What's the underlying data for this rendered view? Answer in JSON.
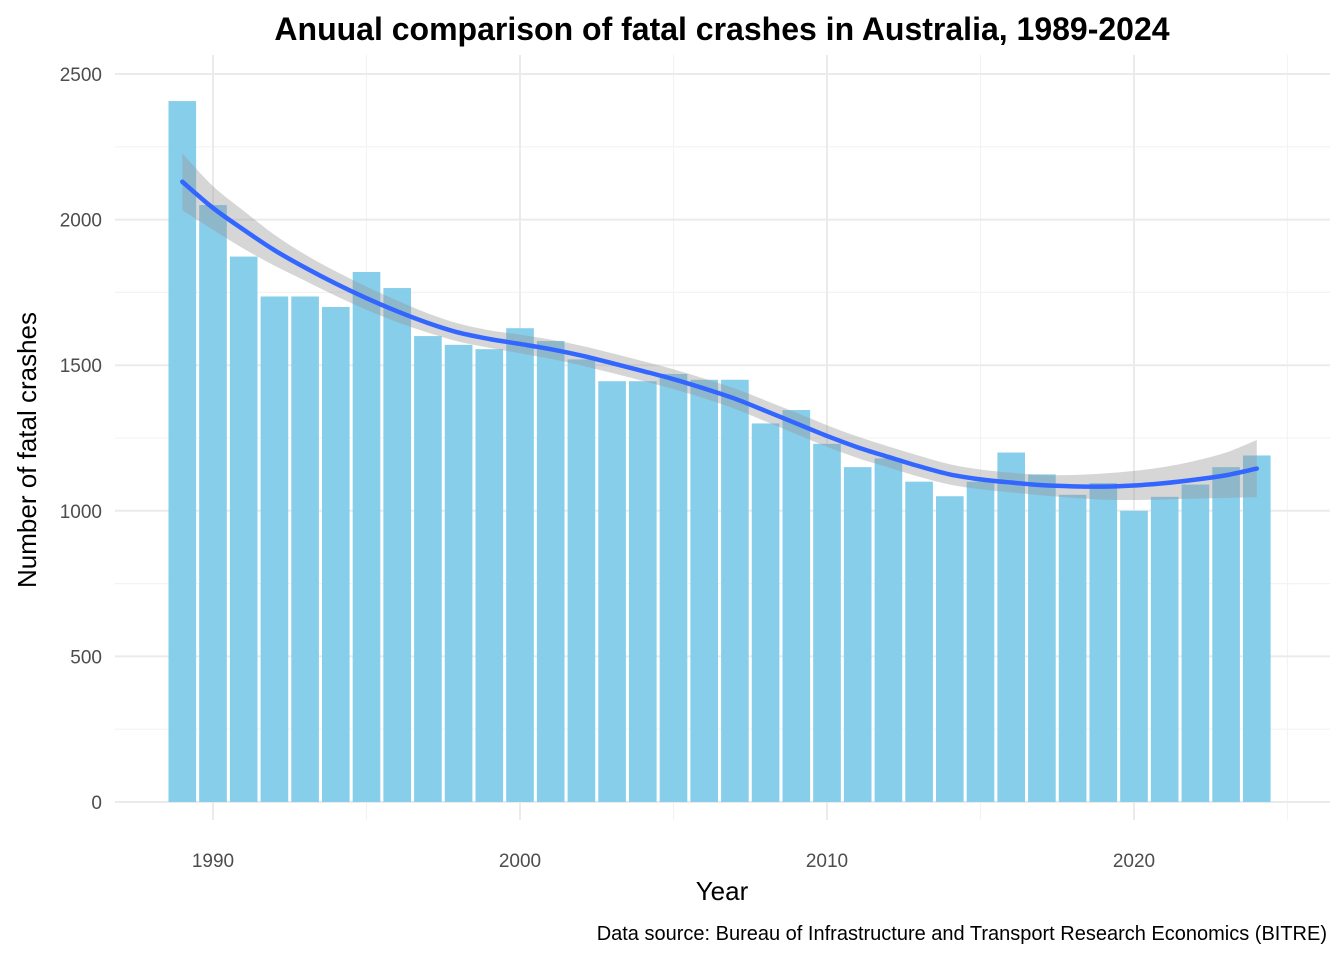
{
  "chart_data": {
    "type": "bar",
    "title": "Anuual comparison of fatal crashes in Australia, 1989-2024",
    "xlabel": "Year",
    "ylabel": "Number of fatal crashes",
    "caption": "Data source: Bureau of Infrastructure and Transport Research Economics (BITRE)",
    "xlim": [
      1987,
      2025.5
    ],
    "ylim": [
      0,
      2500
    ],
    "x_ticks": [
      1990,
      2000,
      2010,
      2020
    ],
    "y_ticks": [
      0,
      500,
      1000,
      1500,
      2000,
      2500
    ],
    "grid": true,
    "legend": "none",
    "bar_color": "#87ceeb",
    "trend_color": "#3366ff",
    "band_color": "#999999",
    "x": [
      1989,
      1990,
      1991,
      1992,
      1993,
      1994,
      1995,
      1996,
      1997,
      1998,
      1999,
      2000,
      2001,
      2002,
      2003,
      2004,
      2005,
      2006,
      2007,
      2008,
      2009,
      2010,
      2011,
      2012,
      2013,
      2014,
      2015,
      2016,
      2017,
      2018,
      2019,
      2020,
      2021,
      2022,
      2023,
      2024
    ],
    "values": [
      2407,
      2050,
      1873,
      1736,
      1736,
      1700,
      1820,
      1765,
      1600,
      1570,
      1555,
      1627,
      1583,
      1520,
      1445,
      1445,
      1470,
      1450,
      1450,
      1300,
      1346,
      1230,
      1150,
      1180,
      1100,
      1050,
      1100,
      1200,
      1125,
      1055,
      1095,
      1000,
      1048,
      1090,
      1150,
      1190
    ],
    "trend": {
      "method": "smooth",
      "x": [
        1989,
        1990,
        1991,
        1992,
        1993,
        1994,
        1995,
        1996,
        1997,
        1998,
        1999,
        2000,
        2001,
        2002,
        2003,
        2004,
        2005,
        2006,
        2007,
        2008,
        2009,
        2010,
        2011,
        2012,
        2013,
        2014,
        2015,
        2016,
        2017,
        2018,
        2019,
        2020,
        2021,
        2022,
        2023,
        2024
      ],
      "y": [
        2130,
        2040,
        1965,
        1895,
        1835,
        1780,
        1730,
        1685,
        1645,
        1612,
        1590,
        1573,
        1555,
        1533,
        1507,
        1480,
        1452,
        1420,
        1385,
        1343,
        1300,
        1257,
        1218,
        1185,
        1153,
        1125,
        1108,
        1097,
        1088,
        1084,
        1083,
        1087,
        1095,
        1107,
        1122,
        1145
      ],
      "upper": [
        2228,
        2115,
        2030,
        1948,
        1880,
        1822,
        1770,
        1722,
        1678,
        1643,
        1620,
        1605,
        1588,
        1567,
        1541,
        1514,
        1486,
        1454,
        1420,
        1379,
        1337,
        1294,
        1255,
        1221,
        1189,
        1160,
        1142,
        1131,
        1123,
        1123,
        1128,
        1137,
        1151,
        1172,
        1200,
        1243
      ],
      "lower": [
        2032,
        1965,
        1900,
        1842,
        1790,
        1738,
        1690,
        1648,
        1612,
        1581,
        1560,
        1541,
        1522,
        1499,
        1473,
        1446,
        1418,
        1386,
        1350,
        1307,
        1263,
        1220,
        1181,
        1149,
        1117,
        1090,
        1074,
        1063,
        1053,
        1045,
        1038,
        1037,
        1039,
        1042,
        1044,
        1047
      ]
    }
  }
}
